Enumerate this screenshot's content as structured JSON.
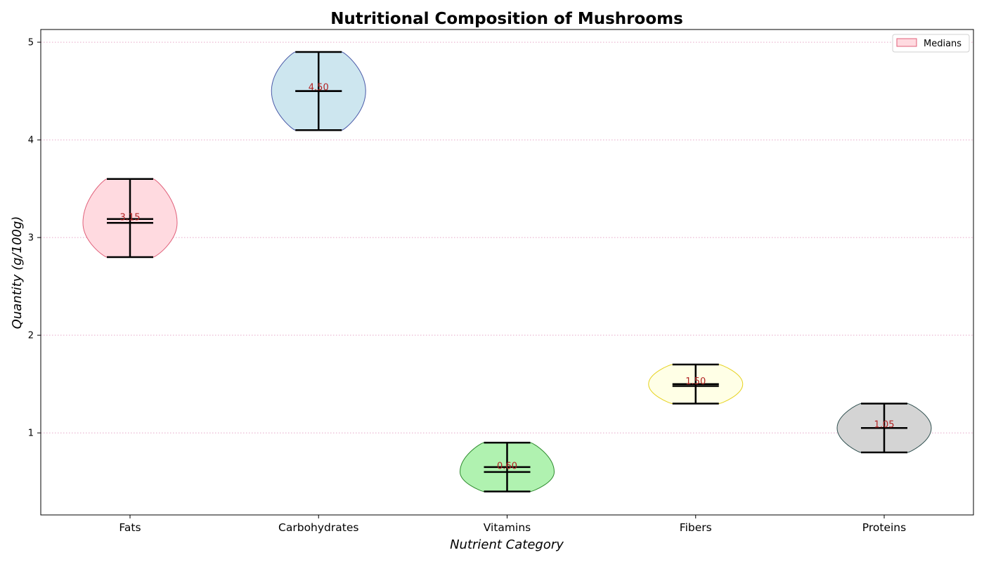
{
  "chart_data": {
    "type": "violin",
    "title": "Nutritional Composition of Mushrooms",
    "xlabel": "Nutrient Category",
    "ylabel": "Quantity (g/100g)",
    "ylim": [
      0.16,
      5.13
    ],
    "yticks": [
      1,
      2,
      3,
      4,
      5
    ],
    "grid": "horizontal dotted",
    "legend": {
      "label": "Medians",
      "placement": "top-right"
    },
    "categories": [
      "Fats",
      "Carbohydrates",
      "Vitamins",
      "Fibers",
      "Proteins"
    ],
    "violins": [
      {
        "name": "Fats",
        "min": 2.8,
        "max": 3.6,
        "mean": 3.19,
        "median": 3.15,
        "median_label": "3.15",
        "max_width_at": 3.15,
        "fill": "#ffdae0",
        "edge": "#e0607a"
      },
      {
        "name": "Carbohydrates",
        "min": 4.1,
        "max": 4.9,
        "mean": 4.5,
        "median": 4.5,
        "median_label": "4.50",
        "max_width_at": 4.5,
        "fill": "#cde6ef",
        "edge": "#4a5aa8"
      },
      {
        "name": "Vitamins",
        "min": 0.4,
        "max": 0.9,
        "mean": 0.65,
        "median": 0.6,
        "median_label": "0.60",
        "max_width_at": 0.6,
        "fill": "#b0f2b0",
        "edge": "#2e8b2e"
      },
      {
        "name": "Fibers",
        "min": 1.3,
        "max": 1.7,
        "mean": 1.5,
        "median": 1.48,
        "median_label": "1.50",
        "max_width_at": 1.5,
        "fill": "#ffffe6",
        "edge": "#e6d21e"
      },
      {
        "name": "Proteins",
        "min": 0.8,
        "max": 1.3,
        "mean": 1.05,
        "median": 1.05,
        "median_label": "1.05",
        "max_width_at": 1.05,
        "fill": "#d4d4d4",
        "edge": "#2f4f4f"
      }
    ],
    "colors": {
      "grid": "#e6a8c8",
      "median_text": "#b22222",
      "stat_lines": "#000000"
    }
  }
}
